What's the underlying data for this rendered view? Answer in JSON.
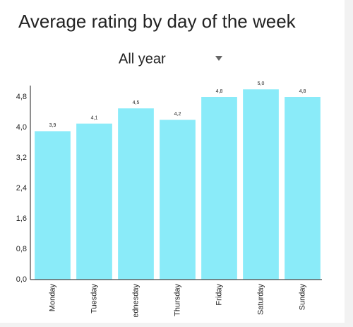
{
  "chart_data": {
    "type": "bar",
    "title": "Average rating by day of the week",
    "filter": "All year",
    "categories": [
      "Monday",
      "Tuesday",
      "Wednesday",
      "Thursday",
      "Friday",
      "Saturday",
      "Sunday"
    ],
    "values": [
      3.9,
      4.1,
      4.5,
      4.2,
      4.8,
      5.0,
      4.8
    ],
    "value_labels": [
      "3,9",
      "4,1",
      "4,5",
      "4,2",
      "4,8",
      "5,0",
      "4,8"
    ],
    "color": "#8aebf9",
    "ylim": [
      0,
      5.1
    ],
    "yticks": [
      {
        "value": 0,
        "label": "0,0"
      },
      {
        "value": 0.8,
        "label": "0,8"
      },
      {
        "value": 1.6,
        "label": "1,6"
      },
      {
        "value": 2.4,
        "label": "2,4"
      },
      {
        "value": 3.2,
        "label": "3,2"
      },
      {
        "value": 4.0,
        "label": "4,0"
      },
      {
        "value": 4.8,
        "label": "4,8"
      }
    ],
    "grid": false
  }
}
